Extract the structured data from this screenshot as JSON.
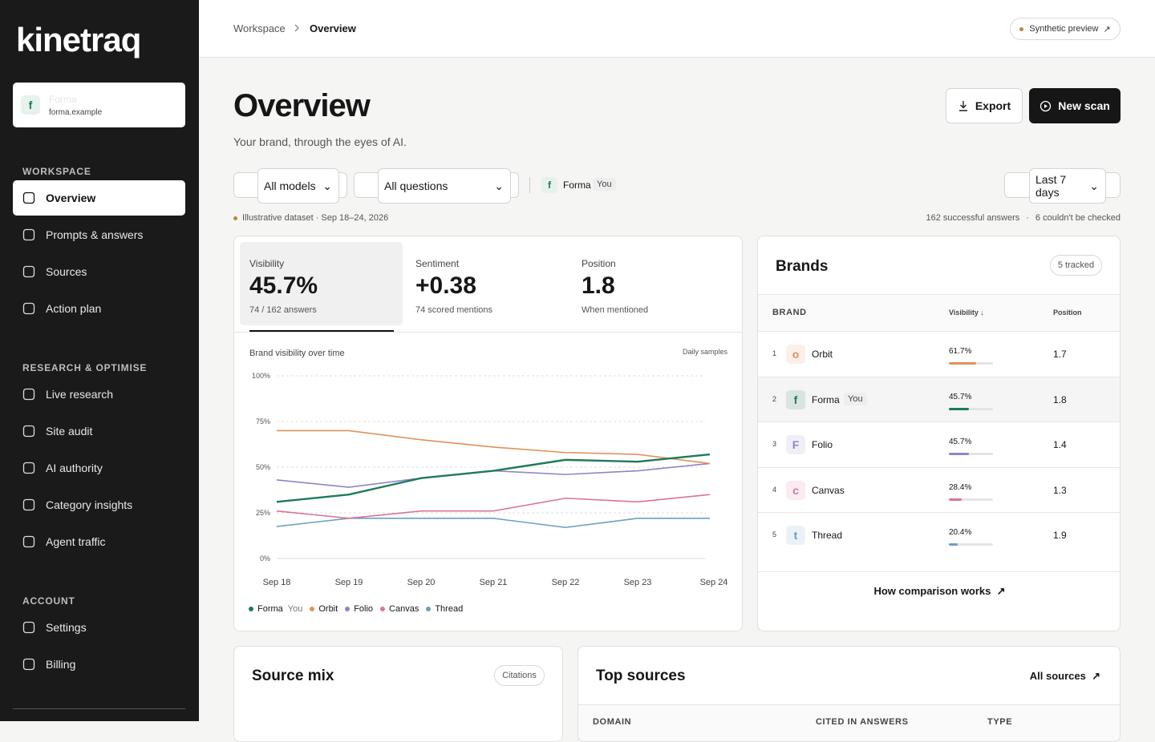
{
  "sidebar": {
    "logo": "kinetraq",
    "brand": {
      "letter": "f",
      "name": "Forma",
      "domain": "forma.example"
    },
    "sections": [
      {
        "title": "WORKSPACE",
        "items": [
          "Overview",
          "Prompts & answers",
          "Sources",
          "Action plan"
        ]
      },
      {
        "title": "RESEARCH & OPTIMISE",
        "items": [
          "Live research",
          "Site audit",
          "AI authority",
          "Category insights",
          "Agent traffic"
        ]
      },
      {
        "title": "ACCOUNT",
        "items": [
          "Settings",
          "Billing"
        ]
      }
    ]
  },
  "topbar": {
    "breadcrumb": [
      "Workspace",
      "Overview"
    ],
    "badge": "Synthetic preview"
  },
  "header": {
    "title": "Overview",
    "subtitle": "Your brand, through the eyes of AI.",
    "export": "Export",
    "new_scan": "New scan"
  },
  "filters": {
    "models": "All models",
    "questions": "All questions",
    "brand_letter": "f",
    "brand": "Forma",
    "brand_tag": "You",
    "range": "Last 7 days"
  },
  "status": {
    "dataset": "Illustrative dataset · Sep 18–24, 2026",
    "successful": "162 successful answers",
    "separator": "·",
    "failed": "6 couldn't be checked"
  },
  "metrics": [
    {
      "label": "Visibility",
      "value": "45.7%",
      "note": "74 / 162 answers"
    },
    {
      "label": "Sentiment",
      "value": "+0.38",
      "note": "74 scored mentions"
    },
    {
      "label": "Position",
      "value": "1.8",
      "note": "When mentioned"
    }
  ],
  "chart_data": {
    "type": "line",
    "title": "Brand visibility over time",
    "subtitle": "Daily samples",
    "categories": [
      "Sep 18",
      "Sep 19",
      "Sep 20",
      "Sep 21",
      "Sep 22",
      "Sep 23",
      "Sep 24"
    ],
    "ylim": [
      0,
      100
    ],
    "yticks": [
      {
        "value": 0,
        "label": "0%"
      },
      {
        "value": 25,
        "label": "25%"
      },
      {
        "value": 50,
        "label": "50%"
      },
      {
        "value": 75,
        "label": "75%"
      },
      {
        "value": 100,
        "label": "100%"
      }
    ],
    "grid": true,
    "legend_tag": "You",
    "series": [
      {
        "name": "Forma",
        "color": "#1f7a5a",
        "values": [
          31,
          35,
          44,
          48,
          54,
          53,
          57
        ]
      },
      {
        "name": "Orbit",
        "color": "#e0925a",
        "values": [
          70,
          70,
          65,
          61,
          58,
          57,
          52
        ]
      },
      {
        "name": "Folio",
        "color": "#8f85c8",
        "values": [
          43,
          39,
          44,
          48,
          46,
          48,
          52
        ]
      },
      {
        "name": "Canvas",
        "color": "#d9749a",
        "values": [
          26,
          22,
          26,
          26,
          33,
          31,
          35
        ]
      },
      {
        "name": "Thread",
        "color": "#6b9fc0",
        "values": [
          17.5,
          22,
          22,
          22,
          17,
          22,
          22
        ]
      }
    ]
  },
  "brands": {
    "title": "Brands",
    "count": "5 tracked",
    "columns": [
      "BRAND",
      "Visibility",
      "Position"
    ],
    "rows": [
      {
        "rank": "1",
        "letter": "o",
        "name": "Orbit",
        "visibility": 61.7,
        "visibility_label": "61.7%",
        "position": "1.7",
        "color": "#e0925a"
      },
      {
        "rank": "2",
        "letter": "f",
        "name": "Forma",
        "tag": "You",
        "visibility": 45.7,
        "visibility_label": "45.7%",
        "position": "1.8",
        "color": "#1f7a5a"
      },
      {
        "rank": "3",
        "letter": "F",
        "name": "Folio",
        "visibility": 45.7,
        "visibility_label": "45.7%",
        "position": "1.4",
        "color": "#8f85c8"
      },
      {
        "rank": "4",
        "letter": "c",
        "name": "Canvas",
        "visibility": 28.4,
        "visibility_label": "28.4%",
        "position": "1.3",
        "color": "#d9749a"
      },
      {
        "rank": "5",
        "letter": "t",
        "name": "Thread",
        "visibility": 20.4,
        "visibility_label": "20.4%",
        "position": "1.9",
        "color": "#6b9fc0"
      }
    ],
    "link": "How comparison works"
  },
  "source_mix": {
    "title": "Source mix",
    "badge": "Citations"
  },
  "top_sources": {
    "title": "Top sources",
    "link": "All sources",
    "columns": [
      "DOMAIN",
      "CITED IN ANSWERS",
      "TYPE"
    ]
  }
}
